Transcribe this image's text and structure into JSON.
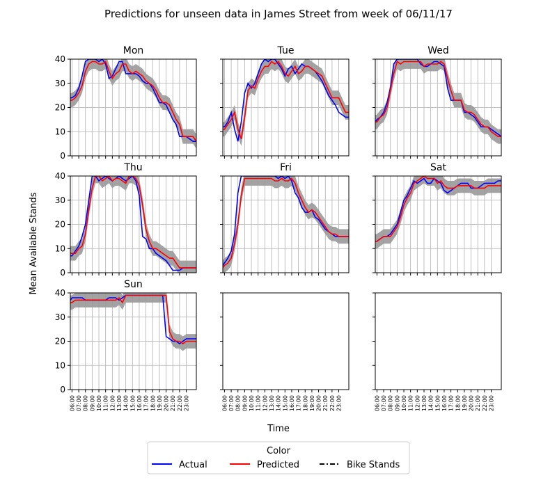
{
  "chart_data": {
    "type": "line",
    "title": "Predictions for unseen data in James Street from week of 06/11/17",
    "xlabel": "Time",
    "ylabel": "Mean Available Stands",
    "ylim": [
      0,
      40
    ],
    "yticks": [
      0,
      10,
      20,
      30,
      40
    ],
    "grid": true,
    "x_ticks": [
      "06:00",
      "07:00",
      "08:00",
      "09:00",
      "10:00",
      "11:00",
      "12:00",
      "13:00",
      "14:00",
      "15:00",
      "16:00",
      "17:00",
      "18:00",
      "19:00",
      "20:00",
      "21:00",
      "22:00",
      "23:00"
    ],
    "x_range_hours": [
      5.75,
      24.5
    ],
    "band_color": "#999999",
    "legend": {
      "title": "Color",
      "placement": "bottom-center",
      "entries": [
        {
          "label": "Actual",
          "color": "#0000ff",
          "style": "solid"
        },
        {
          "label": "Predicted",
          "color": "#ff0000",
          "style": "solid"
        },
        {
          "label": "Bike Stands",
          "color": "#000000",
          "style": "dashdot"
        }
      ]
    },
    "panels": [
      {
        "title": "Mon",
        "x": [
          5.75,
          6,
          6.5,
          7,
          7.5,
          8,
          8.5,
          9,
          9.5,
          10,
          10.5,
          11,
          11.5,
          12,
          12.5,
          13,
          13.5,
          14,
          14.5,
          15,
          15.5,
          16,
          16.5,
          17,
          17.5,
          18,
          18.5,
          19,
          19.5,
          20,
          20.5,
          21,
          21.5,
          22,
          22.5,
          23,
          23.5,
          24,
          24.5
        ],
        "series": [
          {
            "name": "Actual",
            "color": "#0000ff",
            "values": [
              24,
              24,
              25,
              28,
              33,
              39,
              40,
              40,
              40,
              39,
              40,
              38,
              32,
              33,
              36,
              39,
              39,
              34,
              34,
              34,
              34,
              33,
              31,
              30,
              30,
              28,
              25,
              22,
              22,
              21,
              18,
              15,
              13,
              8,
              8,
              8,
              7,
              6,
              6
            ]
          },
          {
            "name": "Predicted",
            "color": "#ff0000",
            "values": [
              23,
              23,
              24,
              26,
              29,
              35,
              38,
              39,
              39,
              38,
              38,
              39,
              35,
              32,
              34,
              35,
              38,
              38,
              35,
              34,
              35,
              34,
              33,
              31,
              30,
              29,
              27,
              24,
              22,
              22,
              21,
              18,
              15,
              13,
              8,
              8,
              8,
              8,
              6
            ]
          }
        ]
      },
      {
        "title": "Tue",
        "x": [
          5.75,
          6,
          6.5,
          7,
          7.5,
          8,
          8.5,
          9,
          9.5,
          10,
          10.5,
          11,
          11.5,
          12,
          12.5,
          13,
          13.5,
          14,
          14.5,
          15,
          15.5,
          16,
          16.5,
          17,
          17.5,
          18,
          18.5,
          19,
          19.5,
          20,
          20.5,
          21,
          21.5,
          22,
          22.5,
          23,
          23.5,
          24,
          24.5
        ],
        "series": [
          {
            "name": "Actual",
            "color": "#0000ff",
            "values": [
              12,
              12,
              14,
              18,
              11,
              6,
              14,
              26,
              30,
              28,
              30,
              34,
              38,
              40,
              39,
              40,
              40,
              38,
              36,
              33,
              36,
              37,
              34,
              36,
              38,
              37,
              37,
              36,
              35,
              33,
              31,
              28,
              25,
              23,
              21,
              18,
              17,
              16,
              16
            ]
          },
          {
            "name": "Predicted",
            "color": "#ff0000",
            "values": [
              11,
              11,
              13,
              15,
              18,
              11,
              7,
              16,
              27,
              29,
              28,
              32,
              35,
              37,
              37,
              39,
              38,
              39,
              37,
              34,
              33,
              35,
              37,
              34,
              35,
              37,
              37,
              36,
              35,
              34,
              33,
              30,
              27,
              24,
              24,
              24,
              21,
              18,
              18
            ]
          }
        ]
      },
      {
        "title": "Wed",
        "x": [
          5.75,
          6,
          6.5,
          7,
          7.5,
          8,
          8.5,
          9,
          9.5,
          10,
          10.5,
          11,
          11.5,
          12,
          12.5,
          13,
          13.5,
          14,
          14.5,
          15,
          15.5,
          16,
          16.5,
          17,
          17.5,
          18,
          18.5,
          19,
          19.5,
          20,
          20.5,
          21,
          21.5,
          22,
          22.5,
          23,
          23.5,
          24,
          24.5
        ],
        "series": [
          {
            "name": "Actual",
            "color": "#0000ff",
            "values": [
              14,
              15,
              16,
              18,
              22,
              28,
              38,
              40,
              40,
              40,
              40,
              40,
              40,
              40,
              38,
              37,
              37,
              38,
              39,
              39,
              38,
              37,
              28,
              23,
              23,
              23,
              23,
              18,
              18,
              17,
              16,
              14,
              12,
              12,
              12,
              11,
              10,
              9,
              8
            ]
          },
          {
            "name": "Predicted",
            "color": "#ff0000",
            "values": [
              14,
              14,
              16,
              17,
              20,
              27,
              34,
              39,
              38,
              39,
              39,
              39,
              39,
              39,
              39,
              37,
              38,
              38,
              38,
              38,
              39,
              38,
              32,
              27,
              23,
              23,
              23,
              19,
              18,
              18,
              17,
              15,
              13,
              12,
              12,
              10,
              9,
              8,
              8
            ]
          }
        ]
      },
      {
        "title": "Thu",
        "x": [
          5.75,
          6,
          6.5,
          7,
          7.5,
          8,
          8.5,
          9,
          9.5,
          10,
          10.5,
          11,
          11.5,
          12,
          12.5,
          13,
          13.5,
          14,
          14.5,
          15,
          15.5,
          16,
          16.5,
          17,
          17.5,
          18,
          18.5,
          19,
          19.5,
          20,
          20.5,
          21,
          21.5,
          22,
          22.5,
          23,
          23.5,
          24,
          24.5
        ],
        "series": [
          {
            "name": "Actual",
            "color": "#0000ff",
            "values": [
              7,
              7,
              9,
              11,
              15,
              20,
              30,
              40,
              40,
              38,
              39,
              40,
              39,
              38,
              39,
              40,
              39,
              38,
              39,
              40,
              38,
              32,
              15,
              14,
              10,
              10,
              8,
              7,
              6,
              5,
              3,
              1,
              1,
              1,
              2,
              2,
              2,
              2,
              2
            ]
          },
          {
            "name": "Predicted",
            "color": "#ff0000",
            "values": [
              8,
              8,
              8,
              10,
              11,
              16,
              26,
              35,
              40,
              40,
              38,
              39,
              40,
              38,
              39,
              39,
              38,
              37,
              40,
              40,
              39,
              36,
              28,
              18,
              13,
              10,
              10,
              9,
              8,
              7,
              6,
              6,
              4,
              2,
              2,
              2,
              2,
              2,
              2
            ]
          }
        ]
      },
      {
        "title": "Fri",
        "x": [
          5.75,
          6,
          6.5,
          7,
          7.5,
          8,
          8.5,
          9,
          9.5,
          10,
          10.5,
          11,
          11.5,
          12,
          12.5,
          13,
          13.5,
          14,
          14.5,
          15,
          15.5,
          16,
          16.5,
          17,
          17.5,
          18,
          18.5,
          19,
          19.5,
          20,
          20.5,
          21,
          21.5,
          22,
          22.5,
          23,
          23.5,
          24,
          24.5
        ],
        "series": [
          {
            "name": "Actual",
            "color": "#0000ff",
            "values": [
              3,
              4,
              6,
              9,
              16,
              33,
              40,
              40,
              40,
              40,
              40,
              40,
              40,
              40,
              40,
              40,
              40,
              39,
              40,
              39,
              40,
              38,
              33,
              31,
              27,
              25,
              25,
              26,
              23,
              22,
              20,
              18,
              17,
              16,
              15,
              15,
              15,
              15,
              15
            ]
          },
          {
            "name": "Predicted",
            "color": "#ff0000",
            "values": [
              2,
              3,
              4,
              6,
              12,
              20,
              32,
              39,
              39,
              39,
              39,
              39,
              39,
              39,
              39,
              39,
              38,
              38,
              39,
              38,
              38,
              39,
              37,
              33,
              30,
              27,
              25,
              26,
              25,
              23,
              21,
              19,
              17,
              16,
              16,
              15,
              15,
              15,
              15
            ]
          }
        ]
      },
      {
        "title": "Sat",
        "x": [
          5.75,
          6,
          6.5,
          7,
          7.5,
          8,
          8.5,
          9,
          9.5,
          10,
          10.5,
          11,
          11.5,
          12,
          12.5,
          13,
          13.5,
          14,
          14.5,
          15,
          15.5,
          16,
          16.5,
          17,
          17.5,
          18,
          18.5,
          19,
          19.5,
          20,
          20.5,
          21,
          21.5,
          22,
          22.5,
          23,
          23.5,
          24,
          24.5
        ],
        "series": [
          {
            "name": "Actual",
            "color": "#0000ff",
            "values": [
              13,
              13,
              14,
              15,
              15,
              16,
              18,
              20,
              25,
              30,
              32,
              35,
              38,
              37,
              38,
              39,
              37,
              37,
              39,
              38,
              37,
              34,
              33,
              34,
              35,
              36,
              37,
              37,
              37,
              35,
              35,
              35,
              36,
              37,
              37,
              37,
              37,
              38,
              38
            ]
          },
          {
            "name": "Predicted",
            "color": "#ff0000",
            "values": [
              13,
              13,
              14,
              15,
              15,
              15,
              17,
              19,
              23,
              28,
              31,
              33,
              37,
              38,
              39,
              40,
              39,
              39,
              39,
              37,
              38,
              36,
              35,
              35,
              35,
              36,
              36,
              36,
              36,
              36,
              35,
              35,
              35,
              35,
              36,
              36,
              36,
              36,
              36
            ]
          }
        ]
      },
      {
        "title": "Sun",
        "x": [
          5.75,
          6,
          6.5,
          7,
          7.5,
          8,
          8.5,
          9,
          9.5,
          10,
          10.5,
          11,
          11.5,
          12,
          12.5,
          13,
          13.5,
          14,
          14.5,
          15,
          15.5,
          16,
          16.5,
          17,
          17.5,
          18,
          18.5,
          19,
          19.5,
          20,
          20.5,
          21,
          21.5,
          22,
          22.5,
          23,
          23.5,
          24,
          24.5
        ],
        "series": [
          {
            "name": "Actual",
            "color": "#0000ff",
            "values": [
              37,
              38,
              38,
              38,
              38,
              37,
              37,
              37,
              37,
              37,
              37,
              37,
              38,
              38,
              38,
              37,
              38,
              39,
              39,
              39,
              39,
              39,
              39,
              39,
              39,
              39,
              39,
              39,
              39,
              22,
              21,
              20,
              20,
              19,
              20,
              21,
              21,
              21,
              21
            ]
          },
          {
            "name": "Predicted",
            "color": "#ff0000",
            "values": [
              36,
              36,
              37,
              37,
              37,
              37,
              37,
              37,
              37,
              37,
              37,
              37,
              37,
              37,
              37,
              38,
              36,
              39,
              39,
              39,
              39,
              39,
              39,
              39,
              39,
              39,
              39,
              39,
              39,
              39,
              24,
              21,
              20,
              20,
              19,
              20,
              20,
              20,
              20
            ]
          }
        ]
      },
      {
        "title": "",
        "x": [],
        "series": []
      },
      {
        "title": "",
        "x": [],
        "series": []
      }
    ]
  }
}
